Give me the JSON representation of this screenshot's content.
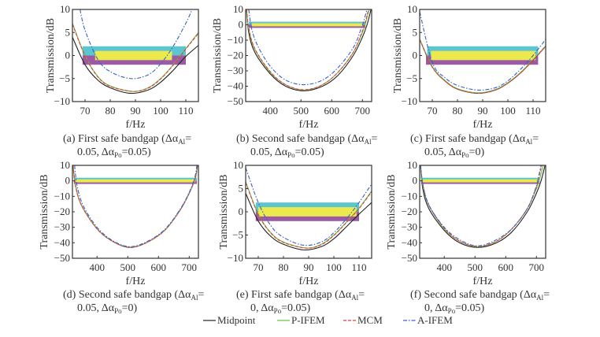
{
  "chart_data": [
    {
      "type": "line",
      "caption": {
        "line1": "(a) First safe bandgap (Δα",
        "sub1": "Al",
        "eq1": "=",
        "line2": "0.05, Δα",
        "sub2": "Po",
        "eq2": "=0.05)"
      },
      "xlabel": "f/Hz",
      "ylabel": "Transmission/dB",
      "xlim": [
        65,
        115
      ],
      "ylim": [
        -10,
        10
      ],
      "xticks": [
        70,
        80,
        90,
        100,
        110
      ],
      "yticks": [
        -10,
        -5,
        0,
        5,
        10
      ],
      "bands": [
        {
          "color": "#5bc6d0",
          "x": [
            69,
            110
          ],
          "y": [
            0,
            2
          ]
        },
        {
          "color": "#9b59a6",
          "x": [
            69,
            110
          ],
          "y": [
            -2,
            0
          ]
        },
        {
          "color": "#ece94e",
          "x": [
            74,
            104.5
          ],
          "y": [
            -1,
            1
          ]
        }
      ],
      "series": [
        {
          "name": "Midpoint",
          "x": [
            65,
            70,
            75,
            80,
            88,
            95,
            100,
            105,
            110,
            115
          ],
          "y": [
            4,
            -2,
            -5.3,
            -7,
            -8.2,
            -7.5,
            -5.8,
            -3.2,
            -0.2,
            2.2
          ]
        },
        {
          "name": "P-IFEM",
          "x": [
            65,
            70,
            75,
            80,
            89,
            95,
            100,
            105,
            110,
            115
          ],
          "y": [
            7,
            0,
            -4.5,
            -6.6,
            -7.8,
            -7,
            -5,
            -2,
            1.5,
            5
          ]
        },
        {
          "name": "MCM",
          "x": [
            65,
            70,
            75,
            80,
            89,
            95,
            100,
            105,
            110,
            115
          ],
          "y": [
            6.8,
            -0.1,
            -4.6,
            -6.7,
            -7.8,
            -7.1,
            -5.1,
            -2.1,
            1.4,
            4.8
          ]
        },
        {
          "name": "A-IFEM",
          "x": [
            68,
            70,
            75,
            80,
            88,
            95,
            100,
            105,
            110,
            112.5
          ],
          "y": [
            10,
            5.5,
            -0.8,
            -3.5,
            -5,
            -4.2,
            -1.8,
            2,
            7,
            10
          ]
        }
      ]
    },
    {
      "type": "line",
      "caption": {
        "line1": "(b) Second safe bandgap (Δα",
        "sub1": "Al",
        "eq1": "=",
        "line2": "0.05, Δα",
        "sub2": "Po",
        "eq2": "=0.05)"
      },
      "xlabel": "f/Hz",
      "ylabel": "Transmission/dB",
      "xlim": [
        320,
        730
      ],
      "ylim": [
        -50,
        10
      ],
      "xticks": [
        400,
        500,
        600,
        700
      ],
      "yticks": [
        -50,
        -40,
        -30,
        -20,
        -10,
        0,
        10
      ],
      "bands": [
        {
          "color": "#5bc6d0",
          "x": [
            330,
            710
          ],
          "y": [
            0,
            2
          ]
        },
        {
          "color": "#9b59a6",
          "x": [
            330,
            710
          ],
          "y": [
            -2,
            0
          ]
        },
        {
          "color": "#ece94e",
          "x": [
            340,
            700
          ],
          "y": [
            -1,
            1
          ]
        }
      ],
      "series": [
        {
          "name": "Midpoint",
          "x": [
            323,
            330,
            350,
            400,
            450,
            510,
            570,
            620,
            670,
            700,
            715,
            728
          ],
          "y": [
            10,
            -5,
            -18,
            -32,
            -40,
            -43,
            -40,
            -33,
            -20,
            -8,
            0,
            10
          ]
        },
        {
          "name": "P-IFEM",
          "x": [
            322,
            330,
            350,
            400,
            450,
            510,
            570,
            620,
            670,
            700,
            710,
            722
          ],
          "y": [
            10,
            -3,
            -16,
            -31,
            -39,
            -42.5,
            -39,
            -31,
            -18,
            -5,
            1,
            10
          ]
        },
        {
          "name": "MCM",
          "x": [
            323,
            331,
            351,
            400,
            450,
            510,
            570,
            620,
            670,
            698,
            708,
            720
          ],
          "y": [
            10,
            -3,
            -16,
            -30.5,
            -39,
            -42.3,
            -39,
            -31,
            -18,
            -5,
            1,
            10
          ]
        },
        {
          "name": "A-IFEM",
          "x": [
            330,
            340,
            360,
            400,
            450,
            510,
            570,
            620,
            670,
            695,
            705,
            715
          ],
          "y": [
            10,
            -3,
            -14,
            -27,
            -36,
            -39,
            -36,
            -28,
            -15,
            -3,
            3,
            10
          ]
        }
      ]
    },
    {
      "type": "line",
      "caption": {
        "line1": "(c) First safe bandgap (Δα",
        "sub1": "Al",
        "eq1": "=",
        "line2": "0.05, Δα",
        "sub2": "Po",
        "eq2": "=0)"
      },
      "xlabel": "f/Hz",
      "ylabel": "Transmission/dB",
      "xlim": [
        65,
        115
      ],
      "ylim": [
        -10,
        10
      ],
      "xticks": [
        70,
        80,
        90,
        100,
        110
      ],
      "yticks": [
        -10,
        -5,
        0,
        5,
        10
      ],
      "bands": [
        {
          "color": "#5bc6d0",
          "x": [
            68,
            112
          ],
          "y": [
            0,
            2
          ]
        },
        {
          "color": "#9b59a6",
          "x": [
            67.5,
            112
          ],
          "y": [
            -2,
            0
          ]
        },
        {
          "color": "#ece94e",
          "x": [
            69.5,
            111
          ],
          "y": [
            -1,
            1
          ]
        }
      ],
      "series": [
        {
          "name": "Midpoint",
          "x": [
            65,
            70,
            75,
            80,
            88,
            95,
            100,
            105,
            110,
            115
          ],
          "y": [
            3.5,
            -2.5,
            -5.5,
            -7.3,
            -8.2,
            -7.5,
            -6,
            -3.8,
            -1,
            2
          ]
        },
        {
          "name": "P-IFEM",
          "x": [
            65,
            70,
            75,
            80,
            88,
            95,
            100,
            105,
            110,
            115
          ],
          "y": [
            3.6,
            -2.4,
            -5.4,
            -7.2,
            -8.1,
            -7.4,
            -5.9,
            -3.7,
            -0.9,
            2.1
          ]
        },
        {
          "name": "MCM",
          "x": [
            65,
            70,
            75,
            80,
            88,
            95,
            100,
            105,
            110,
            115
          ],
          "y": [
            3.5,
            -2.5,
            -5.5,
            -7.3,
            -8.2,
            -7.5,
            -6,
            -3.8,
            -1,
            2
          ]
        },
        {
          "name": "A-IFEM",
          "x": [
            65,
            70,
            75,
            80,
            88,
            95,
            100,
            105,
            110,
            115
          ],
          "y": [
            9.5,
            -1.5,
            -4.8,
            -6.5,
            -7.5,
            -7,
            -5.5,
            -3,
            0,
            3.5
          ]
        }
      ]
    },
    {
      "type": "line",
      "caption": {
        "line1": "(d) Second safe bandgap (Δα",
        "sub1": "Al",
        "eq1": "=",
        "line2": "0.05, Δα",
        "sub2": "Po",
        "eq2": "=0)"
      },
      "xlabel": "f/Hz",
      "ylabel": "Transmission/dB",
      "xlim": [
        320,
        730
      ],
      "ylim": [
        -50,
        10
      ],
      "xticks": [
        400,
        500,
        600,
        700
      ],
      "yticks": [
        -50,
        -40,
        -30,
        -20,
        -10,
        0,
        10
      ],
      "bands": [
        {
          "color": "#5bc6d0",
          "x": [
            325,
            725
          ],
          "y": [
            0,
            2
          ]
        },
        {
          "color": "#9b59a6",
          "x": [
            325,
            725
          ],
          "y": [
            -2,
            0
          ]
        },
        {
          "color": "#ece94e",
          "x": [
            330,
            720
          ],
          "y": [
            -1,
            1
          ]
        }
      ],
      "series": [
        {
          "name": "Midpoint",
          "x": [
            322,
            330,
            350,
            400,
            450,
            505,
            560,
            620,
            670,
            700,
            720,
            727
          ],
          "y": [
            10,
            -3,
            -16,
            -31,
            -39,
            -43,
            -40,
            -32,
            -19,
            -8,
            2,
            10
          ]
        },
        {
          "name": "P-IFEM",
          "x": [
            322,
            330,
            350,
            400,
            450,
            505,
            560,
            620,
            670,
            700,
            720,
            727
          ],
          "y": [
            10,
            -3,
            -16,
            -31,
            -39,
            -42.8,
            -40,
            -32,
            -19,
            -8,
            2,
            10
          ]
        },
        {
          "name": "MCM",
          "x": [
            322,
            330,
            350,
            400,
            450,
            505,
            560,
            620,
            670,
            700,
            720,
            727
          ],
          "y": [
            10,
            -3.2,
            -16,
            -31,
            -39,
            -43,
            -40,
            -32,
            -19,
            -8,
            2,
            10
          ]
        },
        {
          "name": "A-IFEM",
          "x": [
            327,
            335,
            355,
            400,
            450,
            505,
            560,
            620,
            670,
            700,
            718,
            725
          ],
          "y": [
            10,
            -3,
            -16,
            -30,
            -38.5,
            -42.5,
            -39.5,
            -31.5,
            -18.5,
            -7.5,
            2,
            10
          ]
        }
      ]
    },
    {
      "type": "line",
      "caption": {
        "line1": "(e) First safe bandgap (Δα",
        "sub1": "Al",
        "eq1": "=",
        "line2": "0, Δα",
        "sub2": "Po",
        "eq2": "=0.05)"
      },
      "xlabel": "f/Hz",
      "ylabel": "Transmission/dB",
      "xlim": [
        65,
        115
      ],
      "ylim": [
        -10,
        10
      ],
      "xticks": [
        70,
        80,
        90,
        100,
        110
      ],
      "yticks": [
        -10,
        -5,
        0,
        5,
        10
      ],
      "bands": [
        {
          "color": "#5bc6d0",
          "x": [
            69,
            110
          ],
          "y": [
            0,
            2
          ]
        },
        {
          "color": "#9b59a6",
          "x": [
            69,
            110
          ],
          "y": [
            -2,
            0
          ]
        },
        {
          "color": "#ece94e",
          "x": [
            70,
            109
          ],
          "y": [
            -1,
            1
          ]
        }
      ],
      "series": [
        {
          "name": "Midpoint",
          "x": [
            65,
            70,
            75,
            80,
            88,
            95,
            100,
            105,
            110,
            115
          ],
          "y": [
            4,
            -2,
            -5.3,
            -7,
            -8.2,
            -7.5,
            -5.8,
            -3.2,
            -0.5,
            2
          ]
        },
        {
          "name": "P-IFEM",
          "x": [
            65,
            70,
            75,
            80,
            89,
            95,
            100,
            105,
            110,
            115
          ],
          "y": [
            6.5,
            -0.5,
            -4.5,
            -6.5,
            -7.8,
            -7,
            -5,
            -2.2,
            0.8,
            4.5
          ]
        },
        {
          "name": "MCM",
          "x": [
            65,
            70,
            75,
            80,
            89,
            95,
            100,
            105,
            110,
            115
          ],
          "y": [
            6.3,
            -0.6,
            -4.6,
            -6.6,
            -7.8,
            -7.1,
            -5.1,
            -2.3,
            0.7,
            4.3
          ]
        },
        {
          "name": "A-IFEM",
          "x": [
            65,
            70,
            75,
            80,
            88,
            95,
            100,
            105,
            110,
            115
          ],
          "y": [
            9.5,
            2,
            -3,
            -5.5,
            -7.2,
            -6.5,
            -4.5,
            -1.5,
            2,
            6
          ]
        }
      ]
    },
    {
      "type": "line",
      "caption": {
        "line1": "(f) Second safe bandgap (Δα",
        "sub1": "Al",
        "eq1": "=",
        "line2": "0, Δα",
        "sub2": "Po",
        "eq2": "=0.05)"
      },
      "xlabel": "f/Hz",
      "ylabel": "Transmission/dB",
      "xlim": [
        320,
        730
      ],
      "ylim": [
        -50,
        10
      ],
      "xticks": [
        400,
        500,
        600,
        700
      ],
      "yticks": [
        -50,
        -40,
        -30,
        -20,
        -10,
        0,
        10
      ],
      "bands": [
        {
          "color": "#5bc6d0",
          "x": [
            325,
            710
          ],
          "y": [
            0,
            2
          ]
        },
        {
          "color": "#9b59a6",
          "x": [
            325,
            710
          ],
          "y": [
            -2,
            0
          ]
        },
        {
          "color": "#ece94e",
          "x": [
            330,
            705
          ],
          "y": [
            -1,
            1
          ]
        }
      ],
      "series": [
        {
          "name": "Midpoint",
          "x": [
            323,
            330,
            350,
            400,
            450,
            510,
            570,
            620,
            670,
            700,
            715,
            728
          ],
          "y": [
            10,
            -5,
            -18,
            -32,
            -40,
            -43,
            -40,
            -33,
            -20,
            -8,
            0,
            10
          ]
        },
        {
          "name": "P-IFEM",
          "x": [
            322,
            330,
            350,
            400,
            450,
            510,
            570,
            620,
            670,
            700,
            710,
            722
          ],
          "y": [
            10,
            -3,
            -16,
            -31,
            -39,
            -42.5,
            -39,
            -31,
            -18,
            -5,
            1,
            10
          ]
        },
        {
          "name": "MCM",
          "x": [
            323,
            331,
            351,
            400,
            450,
            510,
            570,
            620,
            670,
            698,
            706,
            717
          ],
          "y": [
            10,
            -3,
            -16,
            -30.5,
            -39,
            -42.3,
            -39,
            -31,
            -18,
            -5,
            1,
            10
          ]
        },
        {
          "name": "A-IFEM",
          "x": [
            323,
            331,
            351,
            400,
            450,
            505,
            560,
            620,
            670,
            697,
            705,
            715
          ],
          "y": [
            10,
            -3,
            -16,
            -30,
            -38,
            -42,
            -39,
            -31,
            -18,
            -5,
            1,
            10
          ]
        }
      ]
    }
  ],
  "legend": {
    "placement": "bottom-center",
    "entries": [
      {
        "name": "Midpoint",
        "color": "#222222",
        "style": "solid"
      },
      {
        "name": "P-IFEM",
        "color": "#6abf4b",
        "style": "solid"
      },
      {
        "name": "MCM",
        "color": "#e0403a",
        "style": "dashed"
      },
      {
        "name": "A-IFEM",
        "color": "#3a5fcd",
        "style": "dash-dot"
      }
    ]
  }
}
